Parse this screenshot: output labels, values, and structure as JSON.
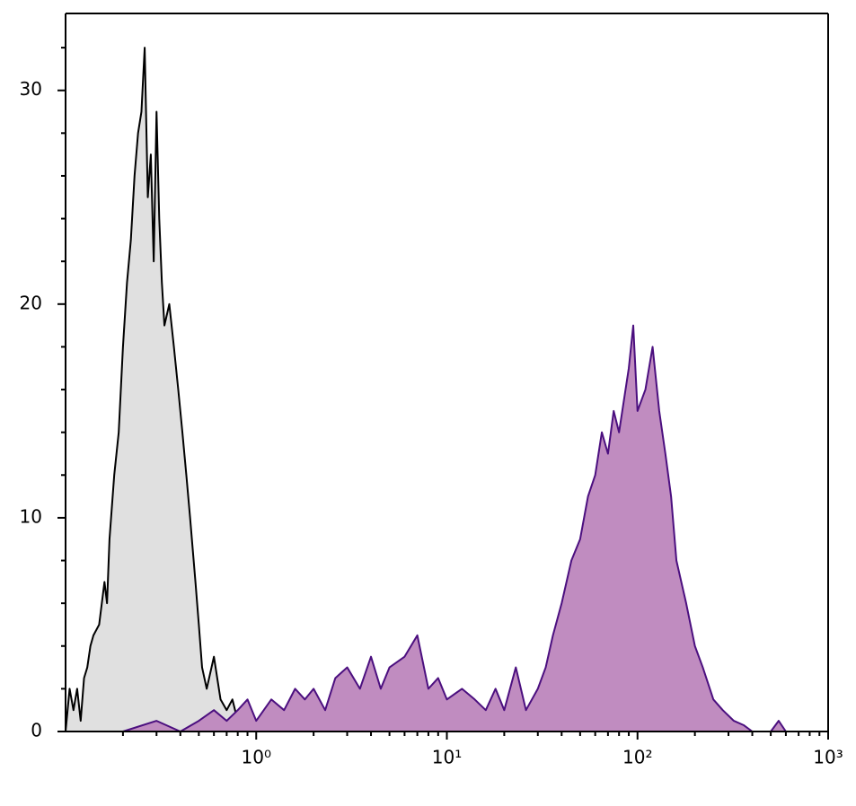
{
  "chart_data": {
    "type": "histogram",
    "xscale": "log",
    "xlim": [
      0.1,
      1000
    ],
    "xticks": [
      {
        "value": 1,
        "label": "10⁰"
      },
      {
        "value": 10,
        "label": "10¹"
      },
      {
        "value": 100,
        "label": "10²"
      },
      {
        "value": 1000,
        "label": "10³"
      }
    ],
    "ylim": [
      0,
      33.6
    ],
    "yticks": [
      0,
      10,
      20,
      30
    ],
    "y_minor_ticks": [
      2,
      4,
      6,
      8,
      12,
      14,
      16,
      18,
      22,
      24,
      26,
      28,
      32
    ],
    "series": [
      {
        "color": "#000000",
        "fill": "#e0e0e0",
        "x": [
          0.1,
          0.105,
          0.11,
          0.115,
          0.12,
          0.125,
          0.13,
          0.135,
          0.14,
          0.15,
          0.16,
          0.165,
          0.17,
          0.18,
          0.19,
          0.2,
          0.21,
          0.22,
          0.23,
          0.24,
          0.25,
          0.26,
          0.27,
          0.28,
          0.29,
          0.3,
          0.31,
          0.32,
          0.33,
          0.35,
          0.37,
          0.39,
          0.41,
          0.43,
          0.45,
          0.48,
          0.5,
          0.52,
          0.55,
          0.6,
          0.65,
          0.7,
          0.75,
          0.8,
          0.9,
          1.0
        ],
        "values": [
          0,
          2,
          1,
          2,
          0.5,
          2.5,
          3,
          4,
          4.5,
          5,
          7,
          6,
          9,
          12,
          14,
          18,
          21,
          23,
          26,
          28,
          29,
          32,
          25,
          27,
          22,
          29,
          24,
          21,
          19,
          20,
          18,
          16,
          14,
          12,
          10,
          7,
          5,
          3,
          2,
          3.5,
          1.5,
          1,
          1.5,
          0.5,
          0,
          0
        ]
      },
      {
        "color": "#4b0f7f",
        "fill": "#c08cc0",
        "x": [
          0.2,
          0.3,
          0.4,
          0.5,
          0.6,
          0.7,
          0.8,
          0.9,
          1,
          1.2,
          1.4,
          1.6,
          1.8,
          2,
          2.3,
          2.6,
          3,
          3.5,
          4,
          4.5,
          5,
          6,
          7,
          8,
          9,
          10,
          12,
          14,
          16,
          18,
          20,
          23,
          26,
          30,
          33,
          36,
          40,
          45,
          50,
          55,
          60,
          65,
          70,
          75,
          80,
          90,
          95,
          100,
          110,
          120,
          130,
          140,
          150,
          160,
          180,
          200,
          220,
          250,
          280,
          320,
          360,
          400,
          500,
          550,
          600
        ],
        "values": [
          0,
          0.5,
          0,
          0.5,
          1,
          0.5,
          1,
          1.5,
          0.5,
          1.5,
          1,
          2,
          1.5,
          2,
          1,
          2.5,
          3,
          2,
          3.5,
          2,
          3,
          3.5,
          4.5,
          2,
          2.5,
          1.5,
          2,
          1.5,
          1,
          2,
          1,
          3,
          1,
          2,
          3,
          4.5,
          6,
          8,
          9,
          11,
          12,
          14,
          13,
          15,
          14,
          17,
          19,
          15,
          16,
          18,
          15,
          13,
          11,
          8,
          6,
          4,
          3,
          1.5,
          1,
          0.5,
          0.3,
          0,
          0,
          0.5,
          0
        ]
      }
    ]
  }
}
